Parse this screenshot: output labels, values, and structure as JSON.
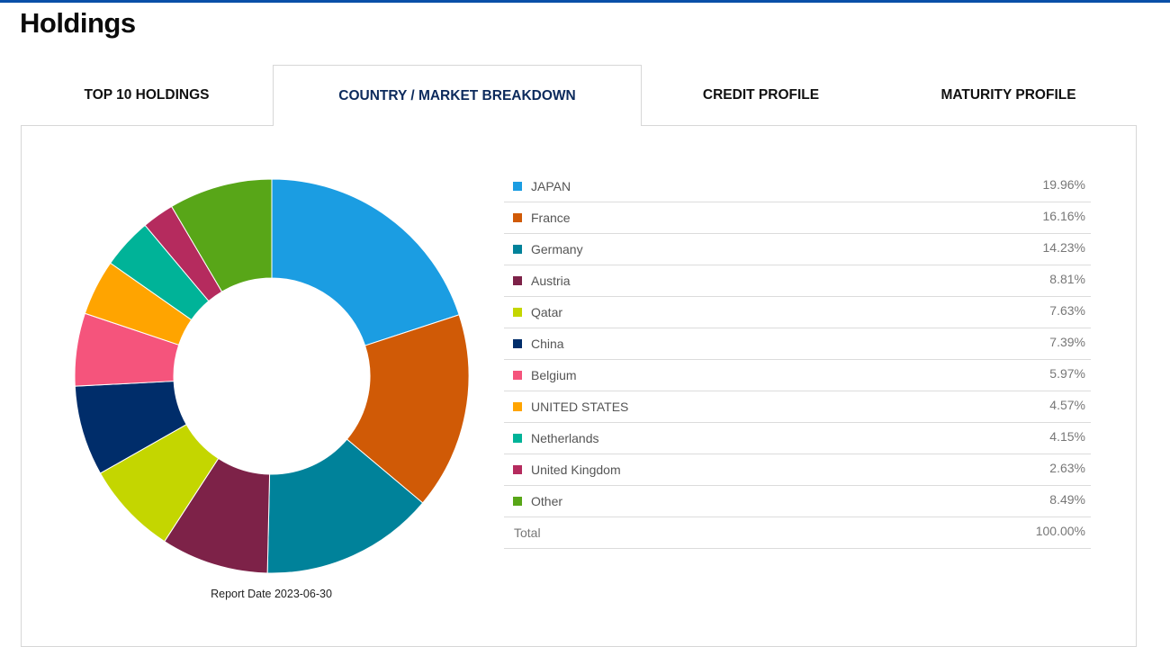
{
  "page": {
    "title": "Holdings"
  },
  "tabs": [
    {
      "label": "TOP 10 HOLDINGS",
      "active": false
    },
    {
      "label": "COUNTRY / MARKET BREAKDOWN",
      "active": true
    },
    {
      "label": "CREDIT PROFILE",
      "active": false
    },
    {
      "label": "MATURITY PROFILE",
      "active": false
    }
  ],
  "colors": {
    "top_bar": "#0a4fa8",
    "active_tab_text": "#0c2a5c"
  },
  "report": {
    "date_text": "Report Date 2023-06-30"
  },
  "chart_data": {
    "type": "pie",
    "donut": true,
    "categories": [
      "JAPAN",
      "France",
      "Germany",
      "Austria",
      "Qatar",
      "China",
      "Belgium",
      "UNITED STATES",
      "Netherlands",
      "United Kingdom",
      "Other"
    ],
    "values": [
      19.96,
      16.16,
      14.23,
      8.81,
      7.63,
      7.39,
      5.97,
      4.57,
      4.15,
      2.63,
      8.49
    ],
    "colors": [
      "#1b9de2",
      "#d05a06",
      "#00829a",
      "#7d2248",
      "#c4d600",
      "#002d6a",
      "#f5547c",
      "#ffa400",
      "#00b398",
      "#b52b5e",
      "#58a618"
    ],
    "legend_position": "right"
  },
  "legend": {
    "rows": [
      {
        "label": "JAPAN",
        "value": "19.96%"
      },
      {
        "label": "France",
        "value": "16.16%"
      },
      {
        "label": "Germany",
        "value": "14.23%"
      },
      {
        "label": "Austria",
        "value": "8.81%"
      },
      {
        "label": "Qatar",
        "value": "7.63%"
      },
      {
        "label": "China",
        "value": "7.39%"
      },
      {
        "label": "Belgium",
        "value": "5.97%"
      },
      {
        "label": "UNITED STATES",
        "value": "4.57%"
      },
      {
        "label": "Netherlands",
        "value": "4.15%"
      },
      {
        "label": "United Kingdom",
        "value": "2.63%"
      },
      {
        "label": "Other",
        "value": "8.49%"
      }
    ],
    "total": {
      "label": "Total",
      "value": "100.00%"
    }
  }
}
